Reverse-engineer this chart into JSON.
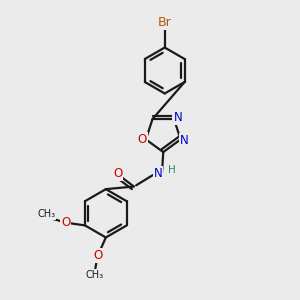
{
  "background_color": "#ebebeb",
  "bond_color": "#1a1a1a",
  "bond_width": 1.6,
  "atom_colors": {
    "Br": "#b35900",
    "O": "#cc0000",
    "N": "#0000cc",
    "H": "#2e8b57",
    "C": "#1a1a1a"
  },
  "font_size": 8.5,
  "fig_size": [
    3.0,
    3.0
  ],
  "dpi": 100
}
